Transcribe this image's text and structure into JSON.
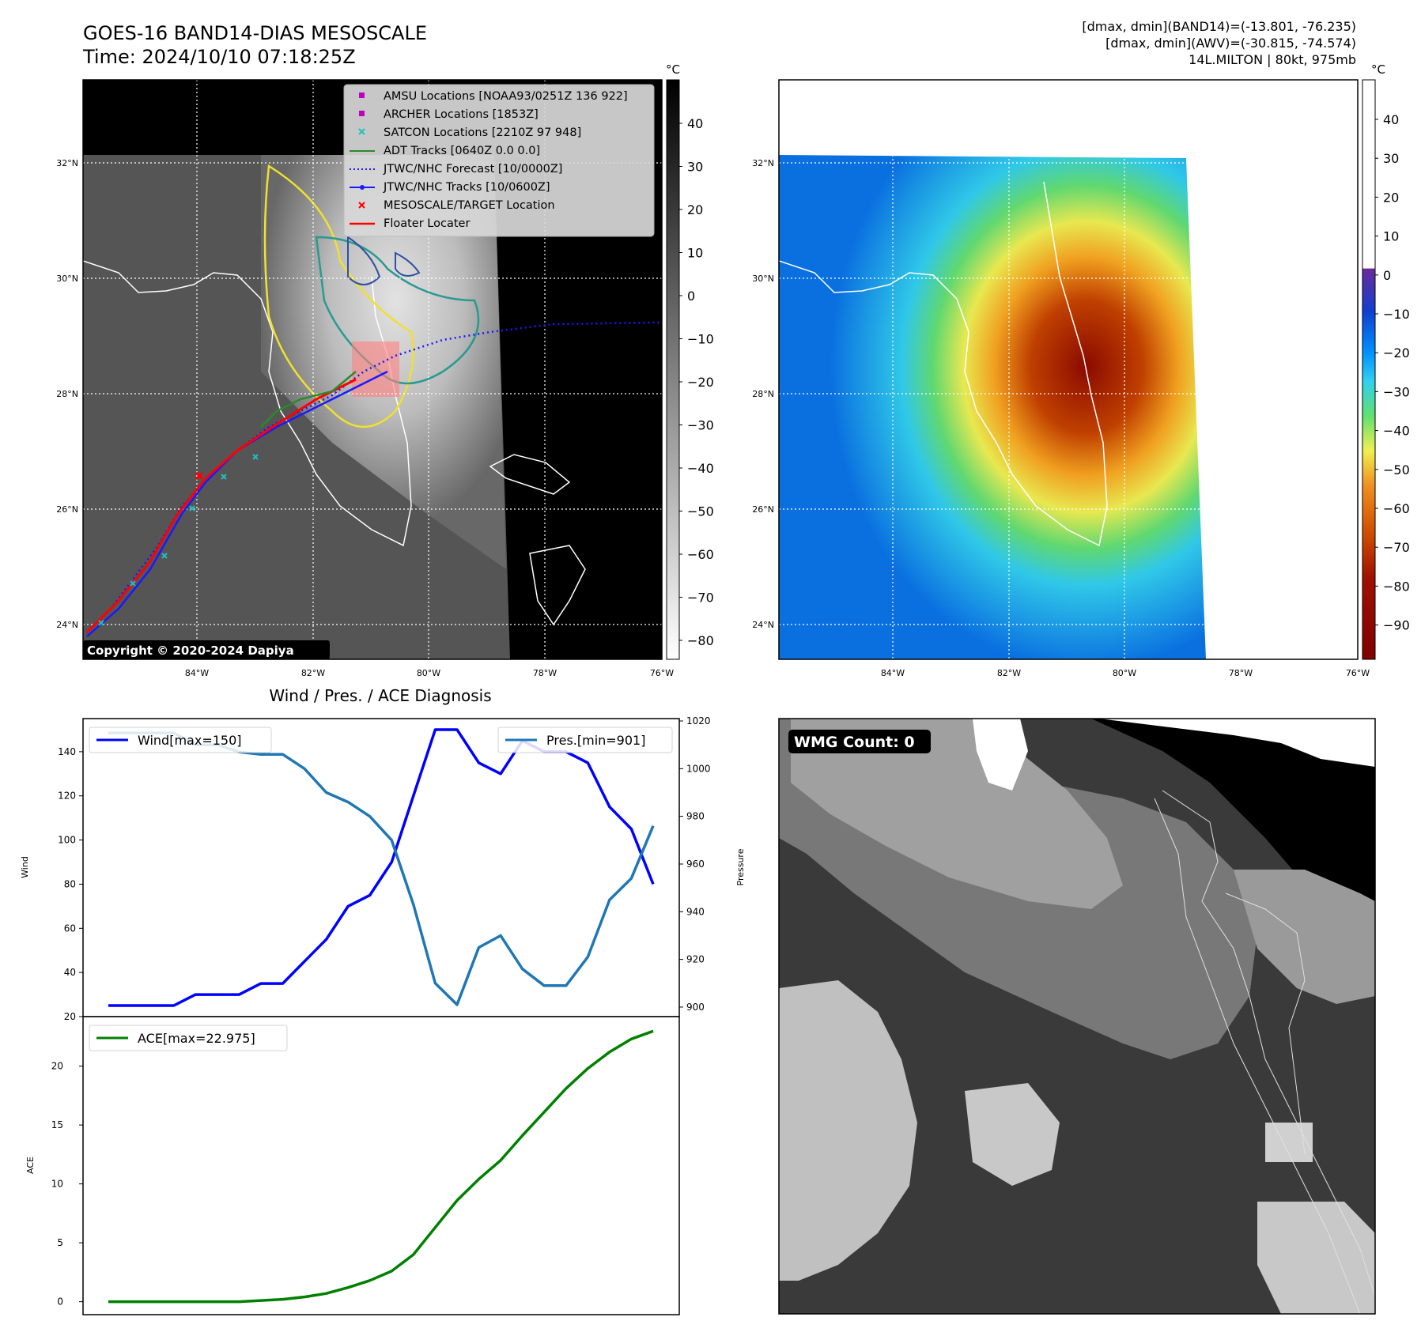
{
  "header": {
    "title_line1": "GOES-16 BAND14-DIAS MESOSCALE",
    "title_line2": "Time: 2024/10/10 07:18:25Z",
    "info_line1": "[dmax, dmin](BAND14)=(-13.801, -76.235)",
    "info_line2": "[dmax, dmin](AWV)=(-30.815, -74.574)",
    "info_line3": "14L.MILTON | 80kt, 975mb"
  },
  "maps": {
    "lat_labels": [
      "32°N",
      "30°N",
      "28°N",
      "26°N",
      "24°N"
    ],
    "lon_labels": [
      "84°W",
      "82°W",
      "80°W",
      "78°W",
      "76°W"
    ],
    "copyright": "Copyright © 2020-2024 Dapiya",
    "legend": [
      "AMSU Locations [NOAA93/0251Z 136 922]",
      "ARCHER Locations [1853Z]",
      "SATCON Locations [2210Z 97 948]",
      "ADT Tracks [0640Z 0.0 0.0]",
      "JTWC/NHC Forecast [10/0000Z]",
      "JTWC/NHC Tracks [10/0600Z]",
      "MESOSCALE/TARGET Location",
      "Floater Locater"
    ],
    "colors": {
      "amsu": "#c000c0",
      "archer": "#c000c0",
      "satcon": "#20c0c0",
      "adt": "#2a8a2a",
      "forecast": "#1a1aff",
      "track": "#1a1aff",
      "target": "#ff0000",
      "floater": "#ff0000"
    }
  },
  "colorbar_gray": {
    "unit": "°C",
    "ticks": [
      "40",
      "30",
      "20",
      "10",
      "0",
      "−10",
      "−20",
      "−30",
      "−40",
      "−50",
      "−60",
      "−70",
      "−80"
    ]
  },
  "colorbar_color": {
    "unit": "°C",
    "ticks": [
      "40",
      "30",
      "20",
      "10",
      "0",
      "−10",
      "−20",
      "−30",
      "−40",
      "−50",
      "−60",
      "−70",
      "−80",
      "−90"
    ]
  },
  "wmg": {
    "label": "WMG Count: 0"
  },
  "chart_data": [
    {
      "type": "line",
      "title": "Wind / Pres. / ACE Diagnosis",
      "ylabel": "Wind",
      "y2label": "Pressure",
      "ylim": [
        20,
        155
      ],
      "y2lim": [
        896,
        1021
      ],
      "yticks": [
        20,
        40,
        60,
        80,
        100,
        120,
        140
      ],
      "y2ticks": [
        900,
        920,
        940,
        960,
        980,
        1000,
        1020
      ],
      "series": [
        {
          "name": "Wind[max=150]",
          "axis": "left",
          "color": "#0000ff",
          "values": [
            25,
            25,
            25,
            25,
            30,
            30,
            30,
            35,
            35,
            45,
            55,
            70,
            75,
            90,
            120,
            150,
            150,
            135,
            130,
            145,
            140,
            140,
            135,
            115,
            105,
            80
          ]
        },
        {
          "name": "Pres.[min=901]",
          "axis": "right",
          "color": "#1f77b4",
          "values": [
            1015,
            1015,
            1015,
            1015,
            1010,
            1010,
            1007,
            1006,
            1006,
            1000,
            990,
            986,
            980,
            970,
            943,
            910,
            901,
            925,
            930,
            916,
            909,
            909,
            921,
            945,
            954,
            976
          ]
        }
      ]
    },
    {
      "type": "line",
      "ylabel": "ACE",
      "ylim": [
        -1.1,
        24.2
      ],
      "yticks": [
        0,
        5,
        10,
        15,
        20
      ],
      "series": [
        {
          "name": "ACE[max=22.975]",
          "color": "#008000",
          "values": [
            0,
            0,
            0,
            0,
            0,
            0,
            0,
            0.1,
            0.2,
            0.4,
            0.7,
            1.2,
            1.8,
            2.6,
            4,
            6.3,
            8.6,
            10.4,
            12,
            14.1,
            16.1,
            18.1,
            19.8,
            21.2,
            22.3,
            22.975
          ]
        }
      ]
    }
  ]
}
